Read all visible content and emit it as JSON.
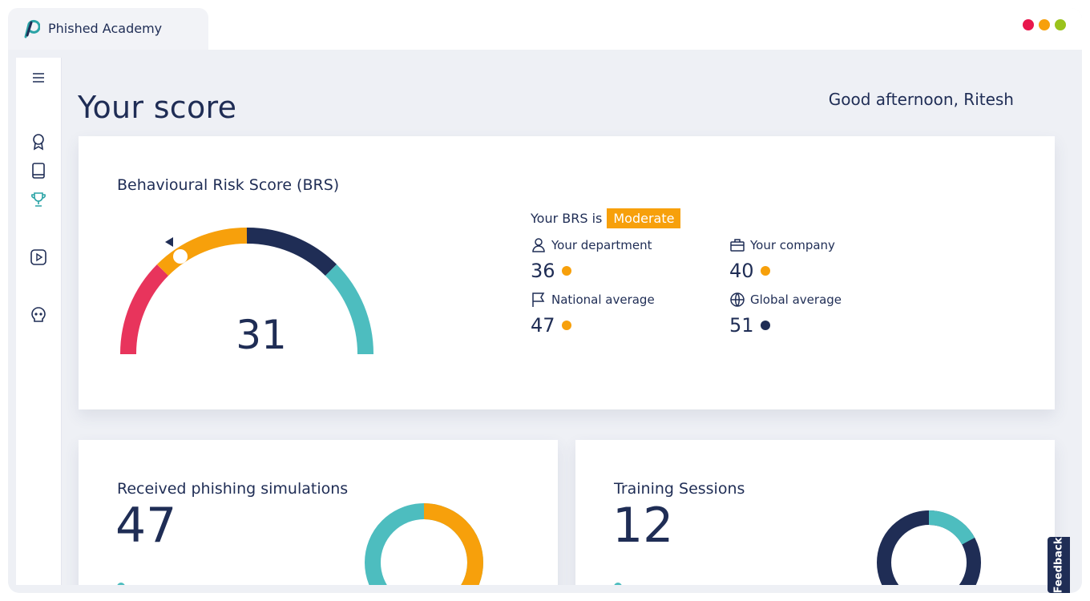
{
  "app": {
    "title": "Phished Academy"
  },
  "window_dots": [
    "#e8174d",
    "#f7a00b",
    "#9ac31c"
  ],
  "sidebar": {
    "items": [
      {
        "icon": "menu-icon"
      },
      {
        "icon": "award-icon"
      },
      {
        "icon": "book-icon"
      },
      {
        "icon": "trophy-icon",
        "active": true
      },
      {
        "icon": "play-icon"
      },
      {
        "icon": "skull-icon"
      }
    ]
  },
  "header": {
    "title": "Your score",
    "greeting": "Good afternoon, Ritesh"
  },
  "brs": {
    "title": "Behavioural Risk Score (BRS)",
    "score": "31",
    "status_prefix": "Your BRS is",
    "status": "Moderate",
    "gauge_segments": [
      {
        "color": "#e8345c",
        "from": 0,
        "to": 25
      },
      {
        "color": "#f7a00b",
        "from": 25,
        "to": 50
      },
      {
        "color": "#1f2d55",
        "from": 50,
        "to": 75
      },
      {
        "color": "#4dbdbf",
        "from": 75,
        "to": 100
      }
    ],
    "stats": [
      {
        "icon": "user-icon",
        "label": "Your department",
        "value": "36",
        "color": "#f7a00b"
      },
      {
        "icon": "briefcase-icon",
        "label": "Your company",
        "value": "40",
        "color": "#f7a00b"
      },
      {
        "icon": "flag-icon",
        "label": "National average",
        "value": "47",
        "color": "#f7a00b"
      },
      {
        "icon": "globe-icon",
        "label": "Global average",
        "value": "51",
        "color": "#1f2d55"
      }
    ]
  },
  "phishing": {
    "title": "Received phishing simulations",
    "count": "47",
    "donut": [
      {
        "color": "#f7a00b",
        "fraction": 0.6
      },
      {
        "color": "#4dbdbf",
        "fraction": 0.4
      }
    ]
  },
  "training": {
    "title": "Training Sessions",
    "count": "12",
    "donut": [
      {
        "color": "#4dbdbf",
        "fraction": 0.17
      },
      {
        "color": "#1f2d55",
        "fraction": 0.83
      }
    ]
  },
  "feedback": {
    "label": "Feedback"
  }
}
